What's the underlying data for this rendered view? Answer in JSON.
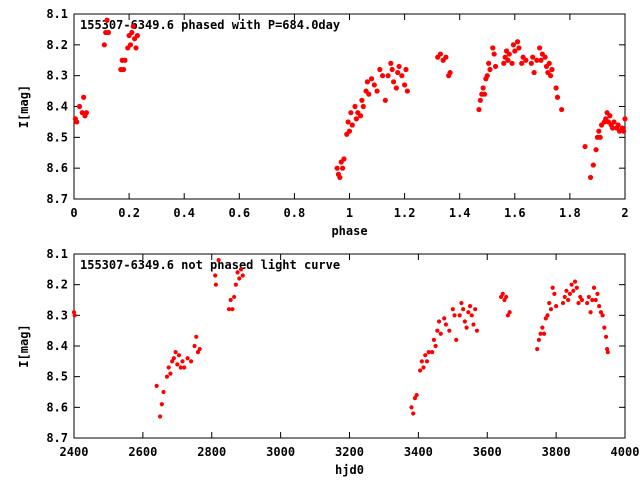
{
  "chart_data": [
    {
      "type": "scatter",
      "title": "155307-6349.6 phased with P=684.0day",
      "xlabel": "phase",
      "ylabel": "I[mag]",
      "xlim": [
        0,
        2
      ],
      "ylim": [
        8.1,
        8.7
      ],
      "y_inverted": true,
      "xticks": [
        0,
        0.2,
        0.4,
        0.6,
        0.8,
        1,
        1.2,
        1.4,
        1.6,
        1.8,
        2
      ],
      "xtick_labels": [
        "0",
        "0.2",
        "0.4",
        "0.6",
        "0.8",
        "1",
        "1.2",
        "1.4",
        "1.6",
        "1.8",
        "2"
      ],
      "yticks": [
        8.1,
        8.2,
        8.3,
        8.4,
        8.5,
        8.6,
        8.7
      ],
      "ytick_labels": [
        "8.1",
        "8.2",
        "8.3",
        "8.4",
        "8.5",
        "8.6",
        "8.7"
      ],
      "grid": false,
      "marker_color": "#ff0000",
      "points": [
        [
          0.005,
          8.44
        ],
        [
          0.01,
          8.45
        ],
        [
          0.02,
          8.4
        ],
        [
          0.03,
          8.42
        ],
        [
          0.035,
          8.37
        ],
        [
          0.04,
          8.43
        ],
        [
          0.045,
          8.42
        ],
        [
          0.11,
          8.2
        ],
        [
          0.115,
          8.16
        ],
        [
          0.12,
          8.12
        ],
        [
          0.125,
          8.16
        ],
        [
          0.17,
          8.28
        ],
        [
          0.175,
          8.25
        ],
        [
          0.18,
          8.28
        ],
        [
          0.185,
          8.25
        ],
        [
          0.195,
          8.21
        ],
        [
          0.2,
          8.17
        ],
        [
          0.205,
          8.2
        ],
        [
          0.21,
          8.16
        ],
        [
          0.215,
          8.14
        ],
        [
          0.22,
          8.18
        ],
        [
          0.225,
          8.21
        ],
        [
          0.23,
          8.17
        ],
        [
          0.955,
          8.6
        ],
        [
          0.96,
          8.62
        ],
        [
          0.965,
          8.63
        ],
        [
          0.97,
          8.58
        ],
        [
          0.975,
          8.6
        ],
        [
          0.98,
          8.57
        ],
        [
          0.99,
          8.49
        ],
        [
          0.995,
          8.45
        ],
        [
          1.0,
          8.48
        ],
        [
          1.005,
          8.42
        ],
        [
          1.01,
          8.46
        ],
        [
          1.02,
          8.4
        ],
        [
          1.025,
          8.44
        ],
        [
          1.03,
          8.42
        ],
        [
          1.04,
          8.43
        ],
        [
          1.045,
          8.38
        ],
        [
          1.05,
          8.4
        ],
        [
          1.06,
          8.35
        ],
        [
          1.065,
          8.32
        ],
        [
          1.07,
          8.36
        ],
        [
          1.08,
          8.31
        ],
        [
          1.09,
          8.33
        ],
        [
          1.1,
          8.35
        ],
        [
          1.11,
          8.28
        ],
        [
          1.12,
          8.3
        ],
        [
          1.13,
          8.38
        ],
        [
          1.14,
          8.3
        ],
        [
          1.15,
          8.26
        ],
        [
          1.155,
          8.28
        ],
        [
          1.16,
          8.32
        ],
        [
          1.17,
          8.34
        ],
        [
          1.175,
          8.29
        ],
        [
          1.18,
          8.27
        ],
        [
          1.19,
          8.3
        ],
        [
          1.2,
          8.33
        ],
        [
          1.205,
          8.28
        ],
        [
          1.21,
          8.35
        ],
        [
          1.32,
          8.24
        ],
        [
          1.33,
          8.23
        ],
        [
          1.34,
          8.25
        ],
        [
          1.35,
          8.24
        ],
        [
          1.36,
          8.3
        ],
        [
          1.365,
          8.29
        ],
        [
          1.47,
          8.41
        ],
        [
          1.475,
          8.38
        ],
        [
          1.48,
          8.36
        ],
        [
          1.485,
          8.34
        ],
        [
          1.49,
          8.36
        ],
        [
          1.495,
          8.31
        ],
        [
          1.5,
          8.3
        ],
        [
          1.505,
          8.26
        ],
        [
          1.51,
          8.28
        ],
        [
          1.52,
          8.21
        ],
        [
          1.525,
          8.23
        ],
        [
          1.53,
          8.27
        ],
        [
          1.56,
          8.26
        ],
        [
          1.565,
          8.24
        ],
        [
          1.57,
          8.22
        ],
        [
          1.575,
          8.25
        ],
        [
          1.58,
          8.23
        ],
        [
          1.59,
          8.26
        ],
        [
          1.595,
          8.2
        ],
        [
          1.6,
          8.22
        ],
        [
          1.61,
          8.19
        ],
        [
          1.615,
          8.21
        ],
        [
          1.625,
          8.26
        ],
        [
          1.63,
          8.24
        ],
        [
          1.64,
          8.25
        ],
        [
          1.66,
          8.26
        ],
        [
          1.665,
          8.24
        ],
        [
          1.67,
          8.29
        ],
        [
          1.68,
          8.25
        ],
        [
          1.69,
          8.21
        ],
        [
          1.695,
          8.25
        ],
        [
          1.7,
          8.23
        ],
        [
          1.71,
          8.24
        ],
        [
          1.715,
          8.27
        ],
        [
          1.72,
          8.29
        ],
        [
          1.725,
          8.26
        ],
        [
          1.73,
          8.3
        ],
        [
          1.735,
          8.28
        ],
        [
          1.75,
          8.34
        ],
        [
          1.755,
          8.37
        ],
        [
          1.77,
          8.41
        ],
        [
          1.855,
          8.53
        ],
        [
          1.875,
          8.63
        ],
        [
          1.885,
          8.59
        ],
        [
          1.895,
          8.54
        ],
        [
          1.9,
          8.5
        ],
        [
          1.905,
          8.48
        ],
        [
          1.91,
          8.5
        ],
        [
          1.915,
          8.46
        ],
        [
          1.925,
          8.45
        ],
        [
          1.93,
          8.44
        ],
        [
          1.935,
          8.42
        ],
        [
          1.94,
          8.45
        ],
        [
          1.945,
          8.43
        ],
        [
          1.95,
          8.46
        ],
        [
          1.955,
          8.47
        ],
        [
          1.96,
          8.45
        ],
        [
          1.97,
          8.47
        ],
        [
          1.975,
          8.46
        ],
        [
          1.98,
          8.48
        ],
        [
          1.99,
          8.47
        ],
        [
          1.995,
          8.48
        ],
        [
          2.0,
          8.44
        ]
      ]
    },
    {
      "type": "scatter",
      "title": "155307-6349.6 not phased light curve",
      "xlabel": "hjd0",
      "ylabel": "I[mag]",
      "xlim": [
        2400,
        4000
      ],
      "ylim": [
        8.1,
        8.7
      ],
      "y_inverted": true,
      "xticks": [
        2400,
        2600,
        2800,
        3000,
        3200,
        3400,
        3600,
        3800,
        4000
      ],
      "xtick_labels": [
        "2400",
        "2600",
        "2800",
        "3000",
        "3200",
        "3400",
        "3600",
        "3800",
        "4000"
      ],
      "yticks": [
        8.1,
        8.2,
        8.3,
        8.4,
        8.5,
        8.6,
        8.7
      ],
      "ytick_labels": [
        "8.1",
        "8.2",
        "8.3",
        "8.4",
        "8.5",
        "8.6",
        "8.7"
      ],
      "grid": false,
      "marker_color": "#ff0000",
      "points": [
        [
          2400,
          8.29
        ],
        [
          2402,
          8.3
        ],
        [
          2640,
          8.53
        ],
        [
          2650,
          8.63
        ],
        [
          2655,
          8.59
        ],
        [
          2660,
          8.55
        ],
        [
          2670,
          8.5
        ],
        [
          2675,
          8.47
        ],
        [
          2680,
          8.49
        ],
        [
          2685,
          8.45
        ],
        [
          2690,
          8.44
        ],
        [
          2695,
          8.42
        ],
        [
          2700,
          8.46
        ],
        [
          2705,
          8.43
        ],
        [
          2710,
          8.47
        ],
        [
          2715,
          8.45
        ],
        [
          2720,
          8.47
        ],
        [
          2730,
          8.44
        ],
        [
          2740,
          8.45
        ],
        [
          2750,
          8.4
        ],
        [
          2755,
          8.37
        ],
        [
          2760,
          8.42
        ],
        [
          2765,
          8.41
        ],
        [
          2810,
          8.17
        ],
        [
          2812,
          8.2
        ],
        [
          2820,
          8.12
        ],
        [
          2850,
          8.28
        ],
        [
          2855,
          8.25
        ],
        [
          2860,
          8.28
        ],
        [
          2865,
          8.24
        ],
        [
          2870,
          8.2
        ],
        [
          2875,
          8.16
        ],
        [
          2880,
          8.18
        ],
        [
          2885,
          8.15
        ],
        [
          2890,
          8.17
        ],
        [
          3380,
          8.6
        ],
        [
          3385,
          8.62
        ],
        [
          3390,
          8.57
        ],
        [
          3395,
          8.56
        ],
        [
          3405,
          8.48
        ],
        [
          3410,
          8.45
        ],
        [
          3415,
          8.47
        ],
        [
          3420,
          8.43
        ],
        [
          3425,
          8.45
        ],
        [
          3430,
          8.42
        ],
        [
          3440,
          8.42
        ],
        [
          3445,
          8.38
        ],
        [
          3450,
          8.4
        ],
        [
          3455,
          8.35
        ],
        [
          3460,
          8.32
        ],
        [
          3465,
          8.36
        ],
        [
          3475,
          8.31
        ],
        [
          3480,
          8.33
        ],
        [
          3490,
          8.35
        ],
        [
          3500,
          8.28
        ],
        [
          3505,
          8.3
        ],
        [
          3510,
          8.38
        ],
        [
          3520,
          8.3
        ],
        [
          3525,
          8.26
        ],
        [
          3530,
          8.28
        ],
        [
          3535,
          8.32
        ],
        [
          3540,
          8.34
        ],
        [
          3545,
          8.29
        ],
        [
          3550,
          8.27
        ],
        [
          3555,
          8.3
        ],
        [
          3560,
          8.33
        ],
        [
          3565,
          8.28
        ],
        [
          3570,
          8.35
        ],
        [
          3640,
          8.24
        ],
        [
          3645,
          8.23
        ],
        [
          3650,
          8.25
        ],
        [
          3655,
          8.24
        ],
        [
          3660,
          8.3
        ],
        [
          3665,
          8.29
        ],
        [
          3745,
          8.41
        ],
        [
          3750,
          8.38
        ],
        [
          3755,
          8.36
        ],
        [
          3760,
          8.34
        ],
        [
          3765,
          8.36
        ],
        [
          3770,
          8.31
        ],
        [
          3775,
          8.3
        ],
        [
          3780,
          8.26
        ],
        [
          3785,
          8.28
        ],
        [
          3790,
          8.21
        ],
        [
          3795,
          8.23
        ],
        [
          3800,
          8.27
        ],
        [
          3820,
          8.26
        ],
        [
          3825,
          8.24
        ],
        [
          3830,
          8.22
        ],
        [
          3835,
          8.25
        ],
        [
          3840,
          8.23
        ],
        [
          3845,
          8.2
        ],
        [
          3850,
          8.22
        ],
        [
          3855,
          8.19
        ],
        [
          3860,
          8.21
        ],
        [
          3865,
          8.26
        ],
        [
          3870,
          8.24
        ],
        [
          3875,
          8.25
        ],
        [
          3890,
          8.26
        ],
        [
          3895,
          8.24
        ],
        [
          3900,
          8.29
        ],
        [
          3905,
          8.25
        ],
        [
          3910,
          8.21
        ],
        [
          3915,
          8.25
        ],
        [
          3920,
          8.23
        ],
        [
          3925,
          8.27
        ],
        [
          3930,
          8.29
        ],
        [
          3935,
          8.3
        ],
        [
          3940,
          8.34
        ],
        [
          3945,
          8.37
        ],
        [
          3948,
          8.41
        ],
        [
          3950,
          8.42
        ]
      ]
    }
  ]
}
